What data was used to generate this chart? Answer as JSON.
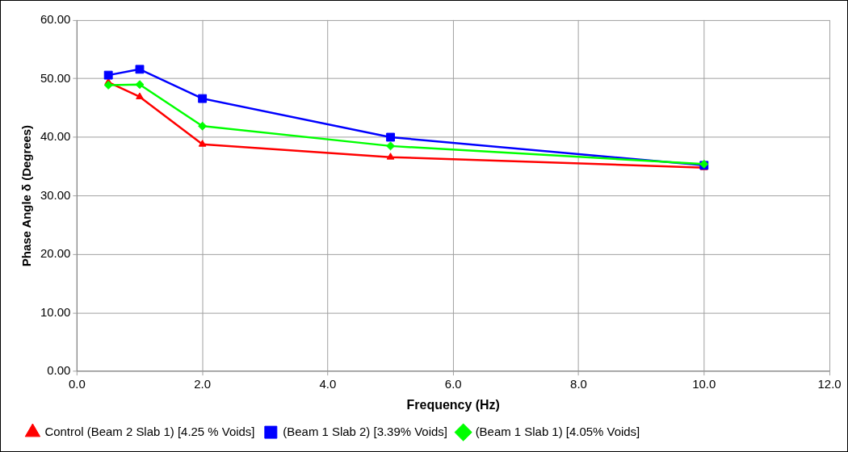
{
  "chart_data": {
    "type": "line",
    "xlabel": "Frequency (Hz)",
    "ylabel": "Phase Angle δ (Degrees)",
    "x": [
      0.5,
      1,
      2,
      5,
      10
    ],
    "series": [
      {
        "name": "Control (Beam 2 Slab 1) [4.25 % Voids]",
        "color": "#ff0000",
        "marker": "triangle",
        "values": [
          49.4,
          46.9,
          38.8,
          36.6,
          34.8
        ]
      },
      {
        "name": "(Beam 1 Slab 2) [3.39% Voids]",
        "color": "#0000ff",
        "marker": "square",
        "values": [
          50.6,
          51.6,
          46.6,
          40.0,
          35.2
        ]
      },
      {
        "name": "(Beam 1 Slab 1) [4.05% Voids]",
        "color": "#00ff00",
        "marker": "diamond",
        "values": [
          48.9,
          49.0,
          41.9,
          38.5,
          35.4
        ]
      }
    ],
    "xlim": [
      0,
      12
    ],
    "xticks": [
      {
        "value": 0,
        "label": "0.0"
      },
      {
        "value": 2,
        "label": "2.0"
      },
      {
        "value": 4,
        "label": "4.0"
      },
      {
        "value": 6,
        "label": "6.0"
      },
      {
        "value": 8,
        "label": "8.0"
      },
      {
        "value": 10,
        "label": "10.0"
      },
      {
        "value": 12,
        "label": "12.0"
      }
    ],
    "ylim": [
      0,
      60
    ],
    "yticks": [
      {
        "value": 0,
        "label": "0.00"
      },
      {
        "value": 10,
        "label": "10.00"
      },
      {
        "value": 20,
        "label": "20.00"
      },
      {
        "value": 30,
        "label": "30.00"
      },
      {
        "value": 40,
        "label": "40.00"
      },
      {
        "value": 50,
        "label": "50.00"
      },
      {
        "value": 60,
        "label": "60.00"
      }
    ],
    "grid": true,
    "legend": "bottom"
  }
}
